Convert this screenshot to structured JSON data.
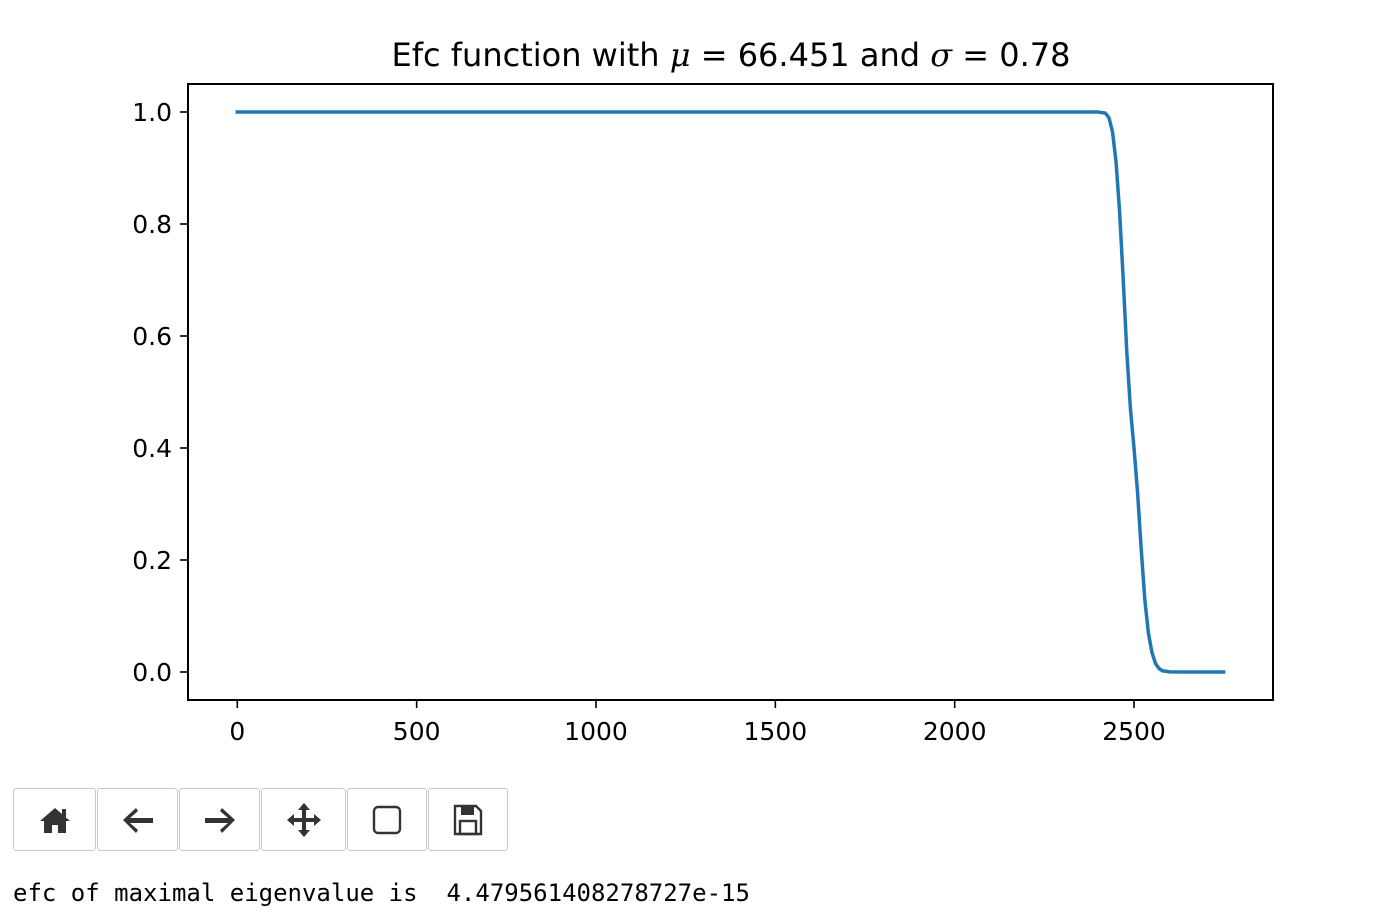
{
  "chart_data": {
    "type": "line",
    "title_parts": {
      "lead": "Efc function with ",
      "mu_symbol": "μ",
      "mu_eq": " = 66.451",
      "mid": " and ",
      "sigma_symbol": "σ",
      "sigma_eq": " = 0.78"
    },
    "xlim": [
      -137.5,
      2887.5
    ],
    "ylim": [
      -0.05,
      1.05
    ],
    "x_ticks": [
      0,
      500,
      1000,
      1500,
      2000,
      2500
    ],
    "x_tick_labels": [
      "0",
      "500",
      "1000",
      "1500",
      "2000",
      "2500"
    ],
    "y_ticks": [
      0.0,
      0.2,
      0.4,
      0.6,
      0.8,
      1.0
    ],
    "y_tick_labels": [
      "0.0",
      "0.2",
      "0.4",
      "0.6",
      "0.8",
      "1.0"
    ],
    "series": [
      {
        "color": "#1f77b4",
        "x": [
          0,
          500,
          1000,
          1500,
          2000,
          2350,
          2400,
          2420,
          2430,
          2440,
          2450,
          2460,
          2470,
          2480,
          2490,
          2500,
          2510,
          2520,
          2530,
          2540,
          2550,
          2560,
          2570,
          2580,
          2600,
          2650,
          2750
        ],
        "y": [
          1.0,
          1.0,
          1.0,
          1.0,
          1.0,
          1.0,
          0.9999,
          0.998,
          0.99,
          0.965,
          0.91,
          0.82,
          0.7,
          0.57,
          0.47,
          0.4,
          0.32,
          0.22,
          0.13,
          0.07,
          0.035,
          0.015,
          0.006,
          0.002,
          0.0003,
          0.0,
          0.0
        ]
      }
    ]
  },
  "toolbar": {
    "buttons": [
      {
        "name": "home",
        "icon": "home-icon"
      },
      {
        "name": "back",
        "icon": "arrow-left-icon"
      },
      {
        "name": "forward",
        "icon": "arrow-right-icon"
      },
      {
        "name": "pan",
        "icon": "move-icon"
      },
      {
        "name": "zoom",
        "icon": "zoom-rect-icon"
      },
      {
        "name": "save",
        "icon": "save-icon"
      }
    ]
  },
  "output": {
    "text": "efc of maximal eigenvalue is  4.479561408278727e-15"
  }
}
